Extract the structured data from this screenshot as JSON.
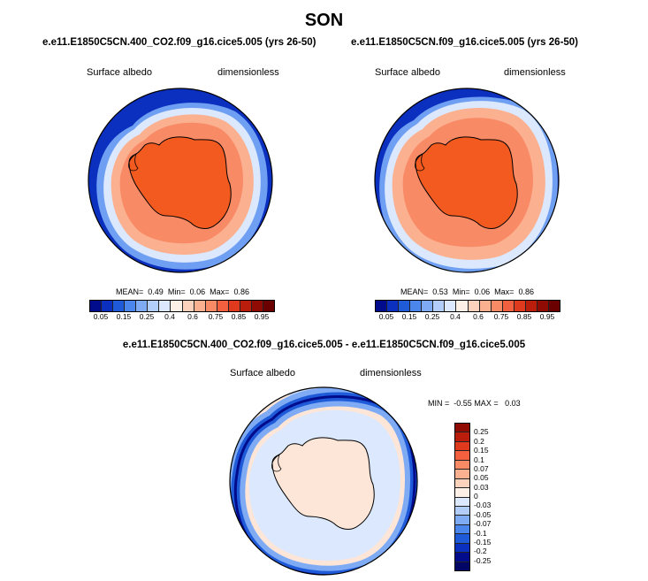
{
  "figure": {
    "title": "SON",
    "variable": "Surface albedo",
    "units": "dimensionless"
  },
  "panels": [
    {
      "case": "e.e11.E1850C5CN.400_CO2.f09_g16.cice5.005 (yrs 26-50)",
      "stats": {
        "mean_label": "MEAN=",
        "mean": "0.49",
        "min_label": "Min=",
        "min": "0.06",
        "max_label": "Max=",
        "max": "0.86"
      }
    },
    {
      "case": "e.e11.E1850C5CN.f09_g16.cice5.005 (yrs 26-50)",
      "stats": {
        "mean_label": "MEAN=",
        "mean": "0.53",
        "min_label": "Min=",
        "min": "0.06",
        "max_label": "Max=",
        "max": "0.86"
      }
    },
    {
      "case": "e.e11.E1850C5CN.400_CO2.f09_g16.cice5.005 - e.e11.E1850C5CN.f09_g16.cice5.005",
      "stats": {
        "min_label": "MIN =",
        "min": "-0.55",
        "max_label": "MAX =",
        "max": "0.03"
      }
    }
  ],
  "colorbars": {
    "albedo": {
      "ticks": [
        "0.05",
        "0.15",
        "0.25",
        "0.4",
        "0.6",
        "0.75",
        "0.85",
        "0.95"
      ],
      "colors": [
        "#000c8c",
        "#0b2fbe",
        "#1f5ad9",
        "#4a86ec",
        "#7fabf5",
        "#b2cdfa",
        "#dbe8fd",
        "#fdf0e7",
        "#fcd2bd",
        "#fbb090",
        "#f88a66",
        "#f36040",
        "#df3a1e",
        "#bb1d0d",
        "#8f0b03",
        "#6a0000"
      ]
    },
    "difference": {
      "ticks": [
        "0.25",
        "0.2",
        "0.15",
        "0.1",
        "0.07",
        "0.05",
        "0.03",
        "0",
        "-0.03",
        "-0.05",
        "-0.07",
        "-0.1",
        "-0.15",
        "-0.2",
        "-0.25"
      ],
      "colors": [
        "#8f0b03",
        "#bb1d0d",
        "#df3a1e",
        "#f36040",
        "#f88a66",
        "#fbb090",
        "#fcd2bd",
        "#fdf0e7",
        "#dbe8fd",
        "#b2cdfa",
        "#7fabf5",
        "#4a86ec",
        "#1f5ad9",
        "#0b2fbe",
        "#000c8c",
        "#000566"
      ]
    }
  }
}
